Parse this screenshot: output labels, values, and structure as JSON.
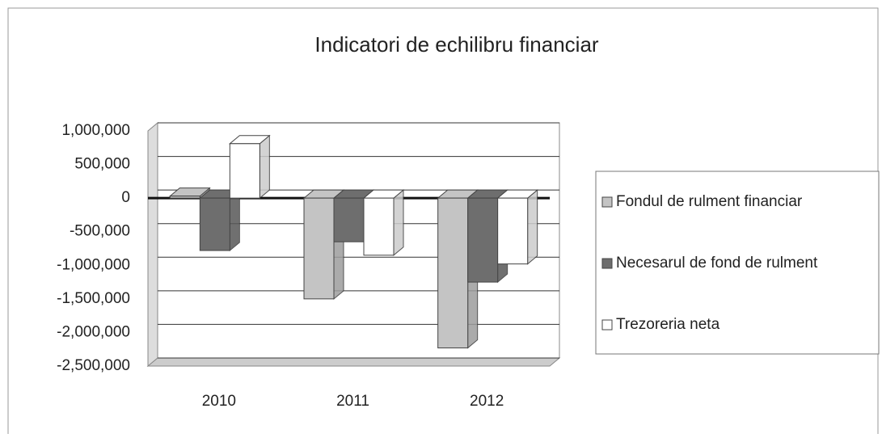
{
  "chart_data": {
    "type": "bar3d",
    "title": "Indicatori de echilibru financiar",
    "categories": [
      "2010",
      "2011",
      "2012"
    ],
    "series": [
      {
        "name": "Fondul de rulment financiar",
        "color": "#c4c4c4",
        "values": [
          30000,
          -1500000,
          -2230000
        ]
      },
      {
        "name": "Necesarul de fond de rulment",
        "color": "#6e6e6e",
        "values": [
          -780000,
          -650000,
          -1250000
        ]
      },
      {
        "name": "Trezoreria neta",
        "color": "#ffffff",
        "values": [
          810000,
          -850000,
          -980000
        ]
      }
    ],
    "ylim": [
      -2500000,
      1000000
    ],
    "yticks": [
      {
        "value": -2500000,
        "label": "-2,500,000"
      },
      {
        "value": -2000000,
        "label": "-2,000,000"
      },
      {
        "value": -1500000,
        "label": "-1,500,000"
      },
      {
        "value": -1000000,
        "label": "-1,000,000"
      },
      {
        "value": -500000,
        "label": "-500,000"
      },
      0,
      {
        "value": 500000,
        "label": "500,000"
      },
      {
        "value": 1000000,
        "label": "1,000,000"
      }
    ],
    "grid": true,
    "legend": "right"
  }
}
